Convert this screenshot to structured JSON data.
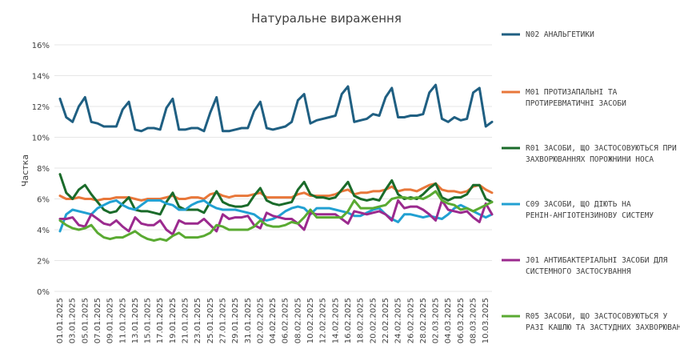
{
  "chart_data": {
    "type": "line",
    "title": "Натуральне  вираження",
    "ylabel": "Частка",
    "ylim": [
      0,
      16
    ],
    "yticks": [
      "0%",
      "2%",
      "4%",
      "6%",
      "8%",
      "10%",
      "12%",
      "14%",
      "16%"
    ],
    "grid": true,
    "legend": "right",
    "x": [
      "01.01.2025",
      "02.01.2025",
      "03.01.2025",
      "04.01.2025",
      "05.01.2025",
      "06.01.2025",
      "07.01.2025",
      "08.01.2025",
      "09.01.2025",
      "10.01.2025",
      "11.01.2025",
      "12.01.2025",
      "13.01.2025",
      "14.01.2025",
      "15.01.2025",
      "16.01.2025",
      "17.01.2025",
      "18.01.2025",
      "19.01.2025",
      "20.01.2025",
      "21.01.2025",
      "22.01.2025",
      "23.01.2025",
      "24.01.2025",
      "25.01.2025",
      "26.01.2025",
      "27.01.2025",
      "28.01.2025",
      "29.01.2025",
      "30.01.2025",
      "31.01.2025",
      "01.02.2025",
      "02.02.2025",
      "03.02.2025",
      "04.02.2025",
      "05.02.2025",
      "06.02.2025",
      "07.02.2025",
      "08.02.2025",
      "09.02.2025",
      "10.02.2025",
      "11.02.2025",
      "12.02.2025",
      "13.02.2025",
      "14.02.2025",
      "15.02.2025",
      "16.02.2025",
      "17.02.2025",
      "18.02.2025",
      "19.02.2025",
      "20.02.2025",
      "21.02.2025",
      "22.02.2025",
      "23.02.2025",
      "24.02.2025",
      "25.02.2025",
      "26.02.2025",
      "27.02.2025",
      "28.02.2025",
      "01.03.2025",
      "02.03.2025",
      "03.03.2025",
      "04.03.2025",
      "05.03.2025",
      "06.03.2025",
      "07.03.2025",
      "08.03.2025",
      "09.03.2025",
      "10.03.2025",
      "11.03.2025"
    ],
    "xticks": [
      "01.01.2025",
      "03.01.2025",
      "05.01.2025",
      "07.01.2025",
      "09.01.2025",
      "11.01.2025",
      "13.01.2025",
      "15.01.2025",
      "17.01.2025",
      "19.01.2025",
      "21.01.2025",
      "23.01.2025",
      "25.01.2025",
      "27.01.2025",
      "29.01.2025",
      "31.01.2025",
      "02.02.2025",
      "04.02.2025",
      "06.02.2025",
      "08.02.2025",
      "10.02.2025",
      "12.02.2025",
      "14.02.2025",
      "16.02.2025",
      "18.02.2025",
      "20.02.2025",
      "22.02.2025",
      "24.02.2025",
      "26.02.2025",
      "28.02.2025",
      "02.03.2025",
      "04.03.2025",
      "06.03.2025",
      "08.03.2025",
      "10.03.2025"
    ],
    "series": [
      {
        "name": "N02 АНАЛЬГЕТИКИ",
        "color": "#1f5f82",
        "values": [
          12.5,
          11.3,
          11.0,
          12.0,
          12.6,
          11.0,
          10.9,
          10.7,
          10.7,
          10.7,
          11.8,
          12.3,
          10.5,
          10.4,
          10.6,
          10.6,
          10.5,
          11.9,
          12.5,
          10.5,
          10.5,
          10.6,
          10.6,
          10.4,
          11.6,
          12.6,
          10.4,
          10.4,
          10.5,
          10.6,
          10.6,
          11.7,
          12.3,
          10.6,
          10.5,
          10.6,
          10.7,
          11.0,
          12.4,
          12.8,
          10.9,
          11.1,
          11.2,
          11.3,
          11.4,
          12.8,
          13.3,
          11.0,
          11.1,
          11.2,
          11.5,
          11.4,
          12.6,
          13.2,
          11.3,
          11.3,
          11.4,
          11.4,
          11.5,
          12.9,
          13.4,
          11.2,
          11.0,
          11.3,
          11.1,
          11.2,
          12.9,
          13.2,
          10.7,
          11.0
        ]
      },
      {
        "name": "M01 ПРОТИЗАПАЛЬНІ ТА ПРОТИРЕВМАТИЧНІ ЗАСОБИ",
        "color": "#e8773a",
        "values": [
          6.2,
          6.0,
          6.0,
          6.1,
          6.0,
          6.0,
          5.9,
          6.0,
          6.0,
          6.1,
          6.1,
          6.1,
          6.0,
          5.9,
          6.0,
          6.0,
          6.0,
          6.1,
          6.2,
          6.0,
          6.0,
          6.1,
          6.1,
          6.0,
          6.3,
          6.4,
          6.2,
          6.1,
          6.2,
          6.2,
          6.2,
          6.3,
          6.4,
          6.1,
          6.1,
          6.1,
          6.1,
          6.1,
          6.3,
          6.4,
          6.2,
          6.2,
          6.2,
          6.2,
          6.3,
          6.5,
          6.6,
          6.3,
          6.4,
          6.4,
          6.5,
          6.5,
          6.6,
          6.8,
          6.5,
          6.6,
          6.6,
          6.5,
          6.7,
          6.9,
          7.0,
          6.6,
          6.5,
          6.5,
          6.4,
          6.5,
          6.8,
          6.9,
          6.6,
          6.4
        ]
      },
      {
        "name": "R01 ЗАСОБИ, ЩО ЗАСТОСОВУЮТЬСЯ ПРИ ЗАХВОРЮВАННЯХ ПОРОЖНИНИ НОСА",
        "color": "#1a6b2a",
        "values": [
          7.6,
          6.4,
          6.0,
          6.6,
          6.9,
          6.3,
          5.8,
          5.3,
          5.1,
          5.2,
          5.7,
          6.1,
          5.3,
          5.2,
          5.2,
          5.1,
          5.0,
          5.8,
          6.4,
          5.5,
          5.3,
          5.3,
          5.3,
          5.1,
          5.8,
          6.5,
          5.8,
          5.6,
          5.5,
          5.5,
          5.6,
          6.2,
          6.7,
          5.9,
          5.7,
          5.6,
          5.7,
          5.8,
          6.6,
          7.1,
          6.3,
          6.1,
          6.1,
          6.0,
          6.1,
          6.6,
          7.1,
          6.2,
          6.0,
          5.9,
          6.0,
          5.9,
          6.6,
          7.2,
          6.3,
          6.0,
          6.1,
          6.0,
          6.3,
          6.7,
          7.0,
          6.1,
          5.9,
          6.1,
          6.1,
          6.3,
          6.9,
          6.9,
          6.0,
          5.8
        ]
      },
      {
        "name": "C09 ЗАСОБИ, ЩО ДІЮТЬ НА РЕНІН-АНГІОТЕНЗИНОВУ СИСТЕМУ",
        "color": "#21a0d2",
        "values": [
          3.9,
          5.0,
          5.3,
          5.2,
          5.1,
          5.0,
          5.4,
          5.6,
          5.8,
          5.9,
          5.6,
          5.4,
          5.3,
          5.6,
          5.9,
          5.9,
          5.9,
          5.7,
          5.6,
          5.3,
          5.3,
          5.6,
          5.8,
          5.9,
          5.6,
          5.4,
          5.3,
          5.3,
          5.3,
          5.2,
          5.1,
          5.0,
          4.7,
          4.6,
          4.7,
          4.9,
          5.2,
          5.4,
          5.5,
          5.4,
          5.0,
          5.4,
          5.4,
          5.4,
          5.3,
          5.2,
          5.1,
          4.9,
          4.9,
          5.1,
          5.3,
          5.4,
          5.0,
          4.7,
          4.5,
          5.0,
          5.0,
          4.9,
          4.8,
          4.9,
          4.8,
          4.7,
          5.0,
          5.4,
          5.6,
          5.4,
          5.2,
          5.0,
          4.8,
          5.0
        ]
      },
      {
        "name": "J01 АНТИБАКТЕРІАЛЬНІ ЗАСОБИ ДЛЯ СИСТЕМНОГО ЗАСТОСУВАННЯ",
        "color": "#9b2a8e",
        "values": [
          4.7,
          4.7,
          4.8,
          4.3,
          4.2,
          5.0,
          4.7,
          4.4,
          4.3,
          4.6,
          4.2,
          3.9,
          4.8,
          4.4,
          4.3,
          4.3,
          4.6,
          4.0,
          3.7,
          4.6,
          4.4,
          4.4,
          4.4,
          4.7,
          4.3,
          3.9,
          5.0,
          4.7,
          4.8,
          4.8,
          4.9,
          4.3,
          4.1,
          5.1,
          4.9,
          4.8,
          4.7,
          4.7,
          4.4,
          4.0,
          5.1,
          5.0,
          5.0,
          5.0,
          5.0,
          4.7,
          4.4,
          5.2,
          5.1,
          5.0,
          5.1,
          5.2,
          5.0,
          4.6,
          5.9,
          5.4,
          5.5,
          5.5,
          5.3,
          5.0,
          4.6,
          5.9,
          5.3,
          5.2,
          5.1,
          5.2,
          4.8,
          4.5,
          5.7,
          5.0
        ]
      },
      {
        "name": "R05 ЗАСОБИ, ЩО ЗАСТОСОВУЮТЬСЯ У РАЗІ КАШЛЮ ТА ЗАСТУДНИХ ЗАХВОРЮВАНЬ",
        "color": "#5aaa32",
        "values": [
          4.6,
          4.3,
          4.1,
          4.0,
          4.1,
          4.3,
          3.8,
          3.5,
          3.4,
          3.5,
          3.5,
          3.7,
          3.9,
          3.6,
          3.4,
          3.3,
          3.4,
          3.3,
          3.6,
          3.8,
          3.5,
          3.5,
          3.5,
          3.6,
          3.8,
          4.3,
          4.2,
          4.0,
          4.0,
          4.0,
          4.0,
          4.2,
          4.6,
          4.3,
          4.2,
          4.2,
          4.3,
          4.5,
          4.4,
          4.8,
          5.3,
          4.8,
          4.8,
          4.8,
          4.8,
          4.8,
          5.2,
          5.9,
          5.4,
          5.4,
          5.4,
          5.5,
          5.6,
          6.0,
          6.1,
          6.1,
          6.0,
          6.1,
          6.0,
          6.2,
          6.5,
          5.9,
          5.7,
          5.6,
          5.3,
          5.4,
          5.2,
          5.4,
          5.6,
          5.8
        ]
      }
    ]
  }
}
